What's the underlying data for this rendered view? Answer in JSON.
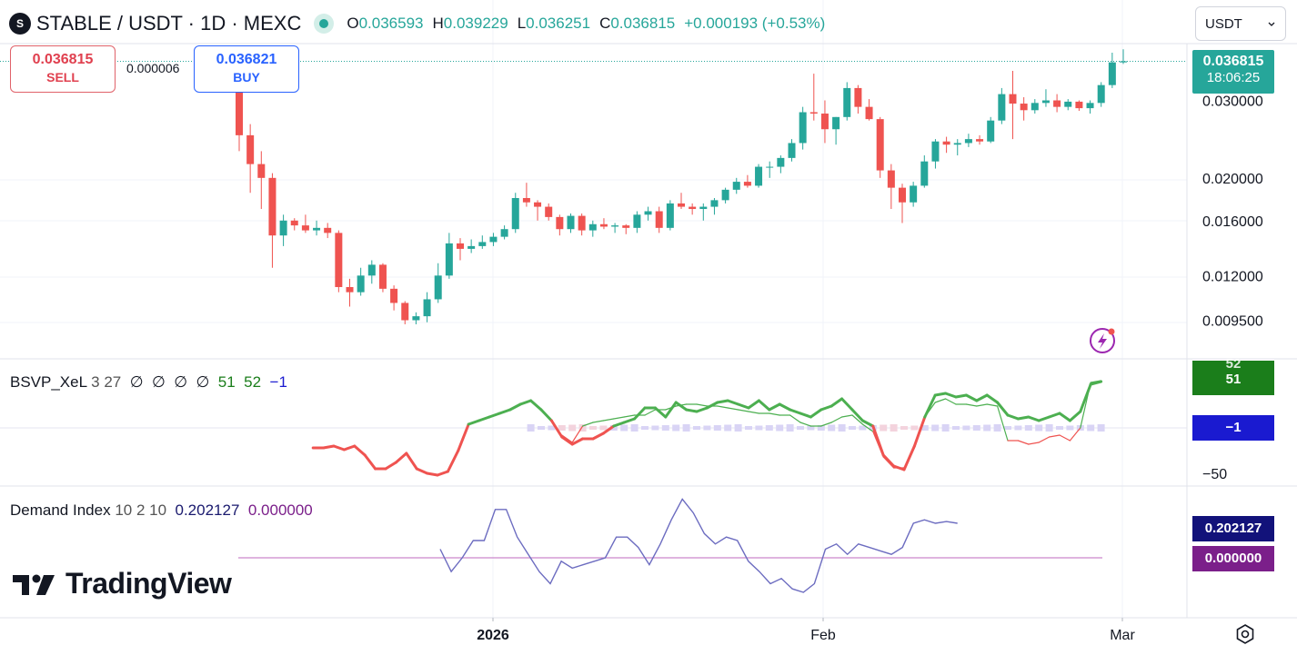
{
  "header": {
    "symbol": "STABLE / USDT · 1D · MEXC",
    "open_label": "O",
    "open": "0.036593",
    "high_label": "H",
    "high": "0.039229",
    "low_label": "L",
    "low": "0.036251",
    "close_label": "C",
    "close": "0.036815",
    "change": "+0.000193 (+0.53%)",
    "currency": "USDT"
  },
  "trade": {
    "sell_price": "0.036815",
    "sell_label": "SELL",
    "spread": "0.000006",
    "buy_price": "0.036821",
    "buy_label": "BUY"
  },
  "price_tag": {
    "price": "0.036815",
    "countdown": "18:06:25"
  },
  "indicators": {
    "bsvp": {
      "name": "BSVP_XeL",
      "params": "3 27",
      "slots": [
        "∅",
        "∅",
        "∅",
        "∅"
      ],
      "v1": "51",
      "v2": "52",
      "v3": "−1",
      "tag1": "52",
      "tag2": "51",
      "tag3": "−1",
      "axis_minus50": "−50"
    },
    "demand": {
      "name": "Demand Index",
      "params": "10 2 10",
      "value": "0.202127",
      "signal": "0.000000"
    }
  },
  "branding": {
    "logo_text": "TradingView"
  },
  "icons": [
    "symbol-logo-icon",
    "live-dot-icon",
    "chevron-down-icon",
    "flash-icon",
    "settings-icon",
    "tradingview-logo-icon"
  ],
  "colors": {
    "up": "#26a69a",
    "down": "#ef5350",
    "green_line": "#4caf50",
    "red_line": "#ef5350",
    "demand_line": "#6c6cc0",
    "signal_line": "#cc88cc"
  },
  "chart_data": [
    {
      "type": "candlestick",
      "title": "STABLE / USDT · 1D · MEXC",
      "y_scale": "log",
      "y_ticks": [
        "0.030000",
        "0.020000",
        "0.016000",
        "0.012000",
        "0.009500"
      ],
      "x_ticks": [
        "2026",
        "Feb",
        "Mar"
      ],
      "ohlc": [
        [
          0.0368,
          0.0375,
          0.023,
          0.025
        ],
        [
          0.025,
          0.0265,
          0.0185,
          0.0215
        ],
        [
          0.0215,
          0.023,
          0.017,
          0.02
        ],
        [
          0.02,
          0.0205,
          0.0125,
          0.0148
        ],
        [
          0.0148,
          0.0165,
          0.014,
          0.016
        ],
        [
          0.016,
          0.0162,
          0.0152,
          0.0156
        ],
        [
          0.0156,
          0.0165,
          0.015,
          0.0152
        ],
        [
          0.0152,
          0.016,
          0.0148,
          0.0154
        ],
        [
          0.0154,
          0.0158,
          0.0146,
          0.015
        ],
        [
          0.015,
          0.0152,
          0.011,
          0.0113
        ],
        [
          0.0113,
          0.0118,
          0.0102,
          0.011
        ],
        [
          0.011,
          0.0125,
          0.0108,
          0.012
        ],
        [
          0.012,
          0.013,
          0.0115,
          0.0127
        ],
        [
          0.0127,
          0.0128,
          0.011,
          0.0112
        ],
        [
          0.0112,
          0.0114,
          0.01,
          0.0104
        ],
        [
          0.0104,
          0.0105,
          0.0093,
          0.0095
        ],
        [
          0.0095,
          0.0099,
          0.0093,
          0.0097
        ],
        [
          0.0097,
          0.011,
          0.0094,
          0.0106
        ],
        [
          0.0106,
          0.0128,
          0.0104,
          0.012
        ],
        [
          0.012,
          0.015,
          0.0118,
          0.0142
        ],
        [
          0.0142,
          0.0146,
          0.013,
          0.0138
        ],
        [
          0.0138,
          0.0145,
          0.0135,
          0.014
        ],
        [
          0.014,
          0.0148,
          0.0138,
          0.0143
        ],
        [
          0.0143,
          0.015,
          0.014,
          0.0147
        ],
        [
          0.0147,
          0.0156,
          0.0145,
          0.0153
        ],
        [
          0.0153,
          0.0185,
          0.015,
          0.018
        ],
        [
          0.018,
          0.0195,
          0.0172,
          0.0176
        ],
        [
          0.0176,
          0.0178,
          0.016,
          0.0172
        ],
        [
          0.0172,
          0.0175,
          0.016,
          0.0163
        ],
        [
          0.0163,
          0.0165,
          0.0148,
          0.0153
        ],
        [
          0.0153,
          0.0166,
          0.015,
          0.0164
        ],
        [
          0.0164,
          0.0166,
          0.0148,
          0.0152
        ],
        [
          0.0152,
          0.016,
          0.0147,
          0.0157
        ],
        [
          0.0157,
          0.0162,
          0.0153,
          0.0155
        ],
        [
          0.0155,
          0.0158,
          0.015,
          0.0156
        ],
        [
          0.0156,
          0.0157,
          0.0149,
          0.0154
        ],
        [
          0.0154,
          0.0168,
          0.015,
          0.0165
        ],
        [
          0.0165,
          0.0172,
          0.016,
          0.0168
        ],
        [
          0.0168,
          0.0172,
          0.015,
          0.0154
        ],
        [
          0.0154,
          0.0178,
          0.0152,
          0.0175
        ],
        [
          0.0175,
          0.0185,
          0.017,
          0.0172
        ],
        [
          0.0172,
          0.0175,
          0.0165,
          0.017
        ],
        [
          0.017,
          0.0175,
          0.016,
          0.0172
        ],
        [
          0.0172,
          0.018,
          0.0165,
          0.0178
        ],
        [
          0.0178,
          0.019,
          0.0175,
          0.0188
        ],
        [
          0.0188,
          0.02,
          0.0184,
          0.0196
        ],
        [
          0.0196,
          0.0203,
          0.019,
          0.0192
        ],
        [
          0.0192,
          0.0215,
          0.019,
          0.0212
        ],
        [
          0.0212,
          0.0218,
          0.02,
          0.0212
        ],
        [
          0.0212,
          0.0225,
          0.0205,
          0.0222
        ],
        [
          0.0222,
          0.0245,
          0.0218,
          0.024
        ],
        [
          0.024,
          0.029,
          0.0232,
          0.0282
        ],
        [
          0.0282,
          0.0345,
          0.027,
          0.028
        ],
        [
          0.028,
          0.03,
          0.024,
          0.0258
        ],
        [
          0.0258,
          0.0275,
          0.0238,
          0.0275
        ],
        [
          0.0275,
          0.033,
          0.027,
          0.032
        ],
        [
          0.032,
          0.0325,
          0.028,
          0.029
        ],
        [
          0.029,
          0.0302,
          0.027,
          0.0272
        ],
        [
          0.0272,
          0.0275,
          0.02,
          0.0208
        ],
        [
          0.0208,
          0.0215,
          0.017,
          0.019
        ],
        [
          0.019,
          0.0194,
          0.0158,
          0.0176
        ],
        [
          0.0176,
          0.0196,
          0.0172,
          0.0192
        ],
        [
          0.0192,
          0.0225,
          0.019,
          0.0218
        ],
        [
          0.0218,
          0.0245,
          0.021,
          0.0242
        ],
        [
          0.0242,
          0.0248,
          0.0228,
          0.0238
        ],
        [
          0.0238,
          0.0245,
          0.0225,
          0.024
        ],
        [
          0.024,
          0.0252,
          0.0235,
          0.0245
        ],
        [
          0.0245,
          0.025,
          0.0238,
          0.0242
        ],
        [
          0.0242,
          0.0275,
          0.024,
          0.027
        ],
        [
          0.027,
          0.032,
          0.0265,
          0.031
        ],
        [
          0.031,
          0.035,
          0.0245,
          0.0295
        ],
        [
          0.0295,
          0.0305,
          0.027,
          0.0285
        ],
        [
          0.0285,
          0.0302,
          0.028,
          0.0296
        ],
        [
          0.0296,
          0.0318,
          0.029,
          0.03
        ],
        [
          0.03,
          0.031,
          0.0282,
          0.029
        ],
        [
          0.029,
          0.0302,
          0.0285,
          0.0298
        ],
        [
          0.0298,
          0.03,
          0.0284,
          0.0288
        ],
        [
          0.0288,
          0.03,
          0.028,
          0.0296
        ],
        [
          0.0296,
          0.033,
          0.029,
          0.0325
        ],
        [
          0.0325,
          0.0385,
          0.032,
          0.0366
        ],
        [
          0.0366,
          0.0392,
          0.0363,
          0.0368
        ]
      ]
    },
    {
      "type": "line",
      "title": "BSVP_XeL",
      "y_ticks": [
        "−50"
      ],
      "series": [
        {
          "values": [
            null,
            null,
            null,
            -22,
            -22,
            -20,
            -24,
            -20,
            -30,
            -45,
            -45,
            -38,
            -28,
            -45,
            -50,
            -52,
            -48,
            -25,
            4,
            8,
            12,
            16,
            20,
            26,
            30,
            20,
            8,
            -10,
            -18,
            -12,
            -12,
            -6,
            2,
            6,
            10,
            22,
            22,
            12,
            28,
            20,
            18,
            22,
            28,
            30,
            26,
            22,
            30,
            20,
            26,
            20,
            16,
            12,
            20,
            24,
            32,
            20,
            8,
            2,
            -30,
            -42,
            -46,
            -20,
            12,
            36,
            38,
            34,
            36,
            30,
            36,
            28,
            14,
            10,
            12,
            8,
            12,
            16,
            8,
            18,
            48,
            51
          ]
        },
        {
          "values": [
            null,
            null,
            null,
            null,
            null,
            null,
            null,
            null,
            null,
            null,
            null,
            null,
            null,
            null,
            null,
            null,
            null,
            null,
            null,
            null,
            null,
            null,
            null,
            null,
            null,
            null,
            null,
            -8,
            -16,
            2,
            6,
            8,
            10,
            12,
            14,
            14,
            20,
            20,
            24,
            26,
            26,
            24,
            24,
            22,
            20,
            18,
            16,
            16,
            14,
            14,
            6,
            2,
            2,
            6,
            12,
            14,
            4,
            -4,
            -32,
            -44,
            -44,
            -22,
            12,
            28,
            32,
            26,
            26,
            24,
            26,
            24,
            -14,
            -14,
            -18,
            -16,
            -10,
            -8,
            -14,
            0,
            50,
            52
          ]
        }
      ]
    },
    {
      "type": "line",
      "title": "Demand Index",
      "series": [
        {
          "name": "Demand Index",
          "values": [
            null,
            null,
            null,
            null,
            null,
            null,
            null,
            null,
            null,
            null,
            null,
            null,
            null,
            null,
            null,
            null,
            null,
            null,
            0.05,
            -0.08,
            0.0,
            0.1,
            0.1,
            0.28,
            0.28,
            0.12,
            0.02,
            -0.08,
            -0.15,
            -0.02,
            -0.06,
            -0.04,
            -0.02,
            0.0,
            0.12,
            0.12,
            0.06,
            -0.04,
            0.08,
            0.22,
            0.34,
            0.26,
            0.14,
            0.08,
            0.12,
            0.1,
            -0.02,
            -0.08,
            -0.15,
            -0.12,
            -0.18,
            -0.2,
            -0.15,
            0.05,
            0.08,
            0.02,
            0.08,
            0.06,
            0.04,
            0.02,
            0.06,
            0.2,
            0.22,
            0.2,
            0.21,
            0.2
          ]
        },
        {
          "name": "Signal",
          "values": [
            0.0
          ]
        }
      ]
    }
  ]
}
